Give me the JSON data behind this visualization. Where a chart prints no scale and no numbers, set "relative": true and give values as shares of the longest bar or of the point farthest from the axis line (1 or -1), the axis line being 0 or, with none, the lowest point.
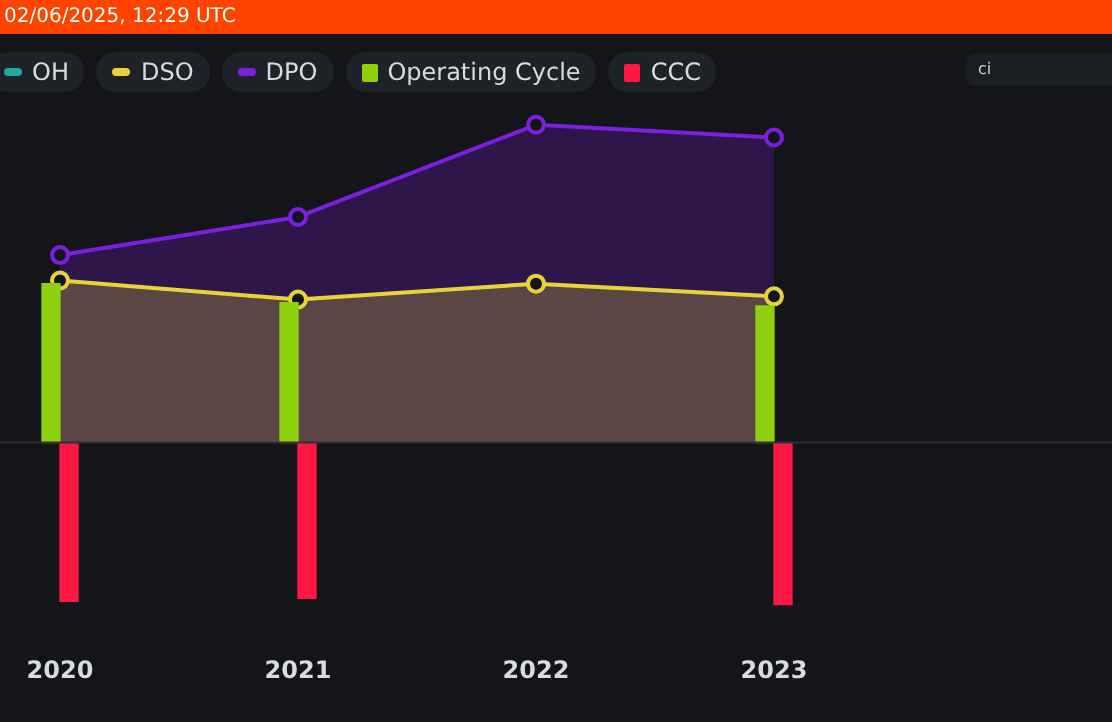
{
  "chart_data": {
    "type": "bar",
    "relative": true,
    "categories": [
      "2020",
      "2021",
      "2022",
      "2023"
    ],
    "series": [
      {
        "name": "OH",
        "type": "area",
        "color": "#26a69a",
        "values": [
          null,
          null,
          null,
          null
        ]
      },
      {
        "name": "DSO",
        "type": "area",
        "color": "#e8d43a",
        "values": [
          0.51,
          0.45,
          0.5,
          0.46
        ]
      },
      {
        "name": "DPO",
        "type": "area",
        "color": "#7b1fe0",
        "values": [
          0.59,
          0.71,
          1,
          0.96
        ]
      },
      {
        "name": "Operating Cycle",
        "color": "#8fd10f",
        "values": [
          0.5,
          0.44,
          null,
          0.43
        ]
      },
      {
        "name": "CCC",
        "color": "#ff1744",
        "values": [
          -0.5,
          -0.49,
          null,
          -0.51
        ]
      }
    ],
    "marker": "circle",
    "legend": "top left",
    "annotations": [
      "02/06/2025, 12:29 UTC",
      "ci"
    ]
  }
}
